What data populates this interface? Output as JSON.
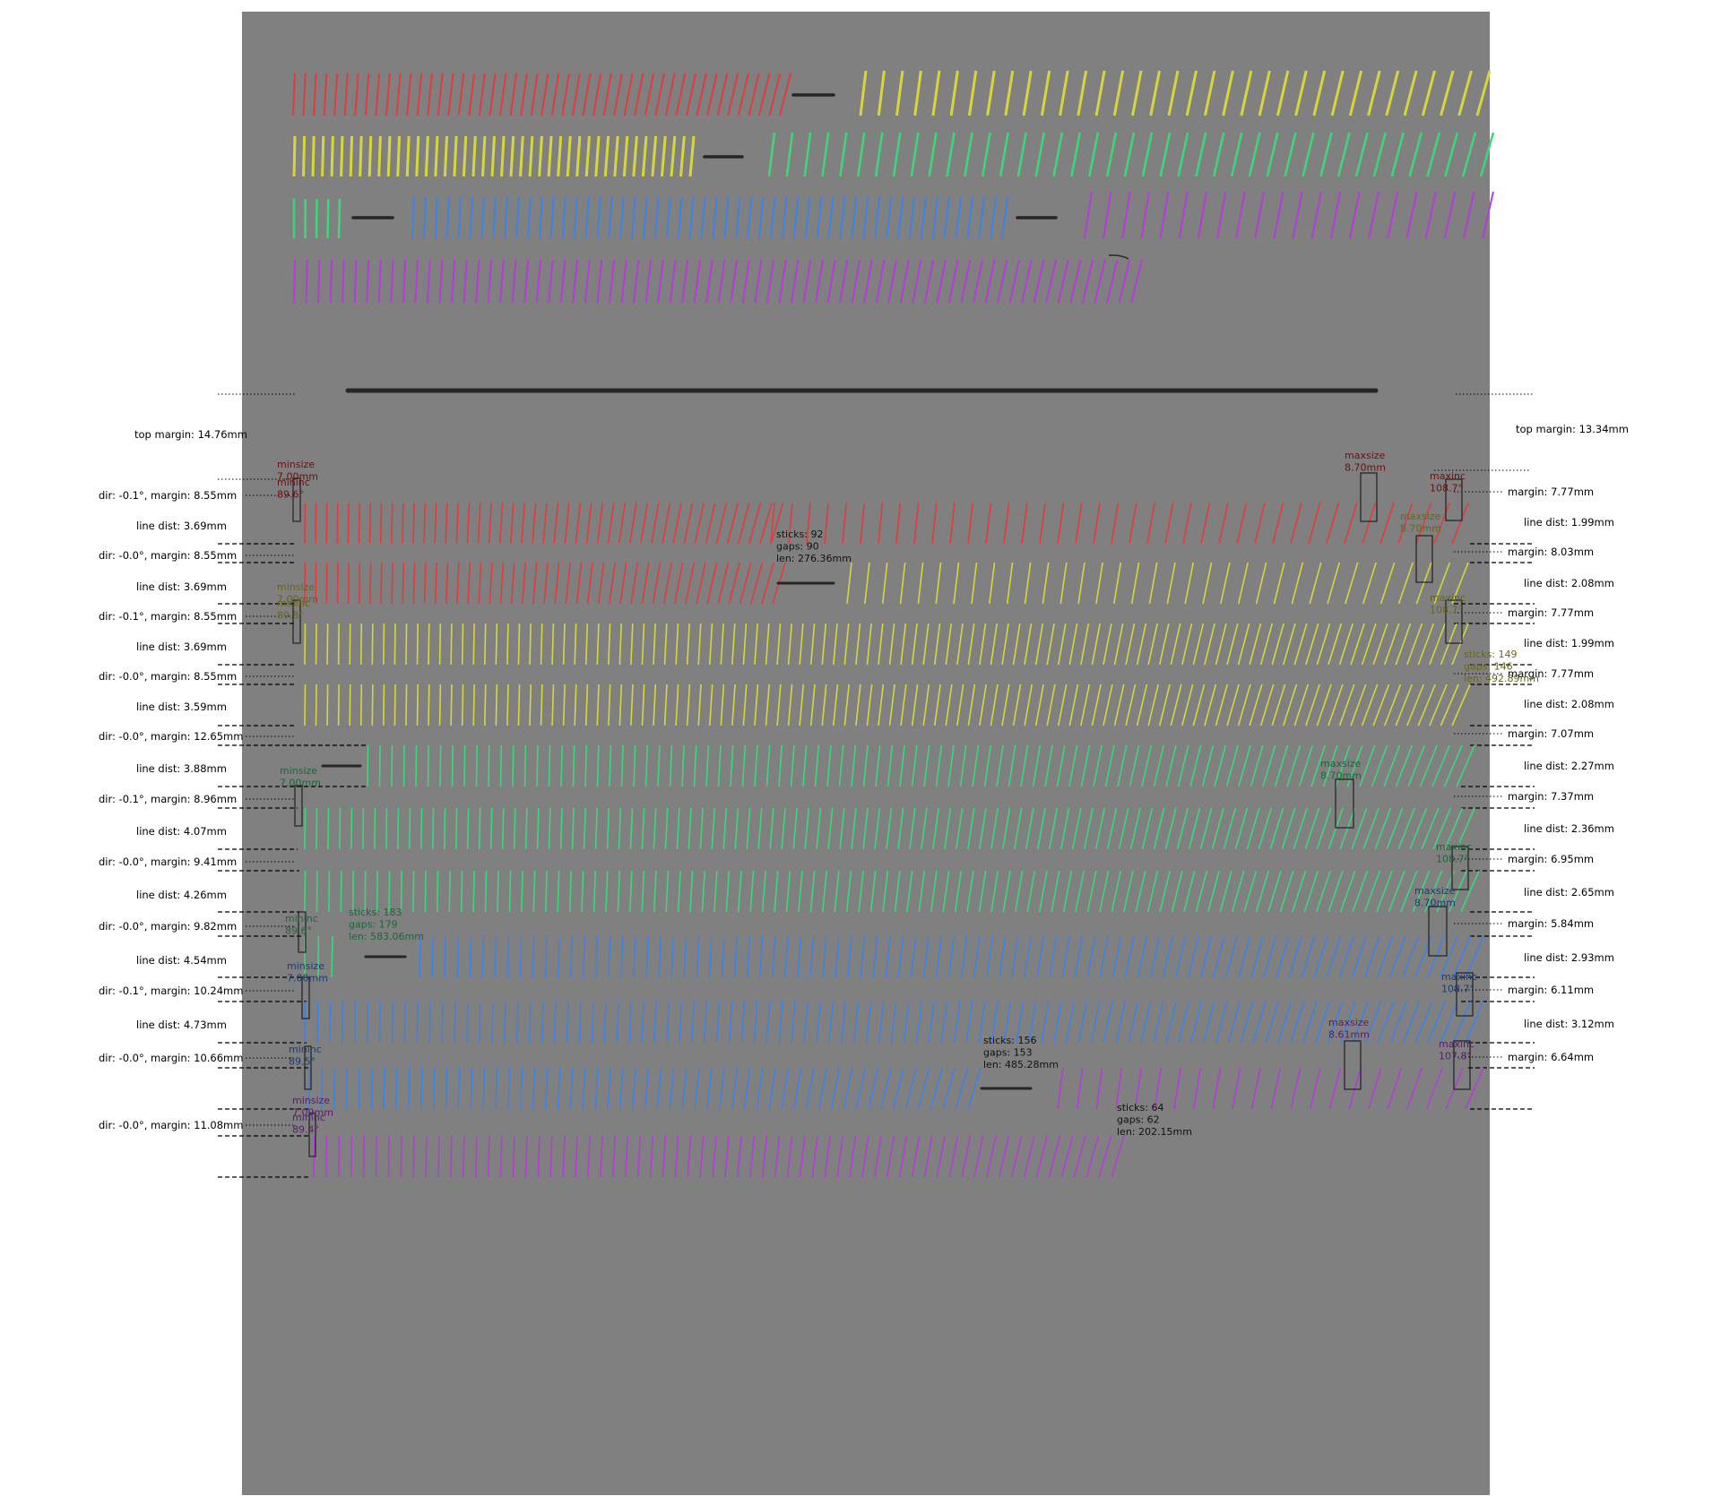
{
  "margins": {
    "top_left": "top margin: 14.76mm",
    "top_right": "top margin: 13.34mm"
  },
  "colors": {
    "background": "#ffffff",
    "sheet": "#808080",
    "ink": "#262626",
    "red": "#e23b3b",
    "yellow": "#d6d63c",
    "green": "#3ed67a",
    "blue": "#3c82e6",
    "purple": "#b53cd8"
  },
  "left_labels": [
    "dir: -0.1°, margin: 8.55mm",
    "line dist: 3.69mm",
    "dir: -0.0°, margin: 8.55mm",
    "line dist: 3.69mm",
    "dir: -0.1°, margin: 8.55mm",
    "line dist: 3.69mm",
    "dir: -0.0°, margin: 8.55mm",
    "line dist: 3.59mm",
    "dir: -0.0°, margin: 12.65mm",
    "line dist: 3.88mm",
    "dir: -0.1°, margin: 8.96mm",
    "line dist: 4.07mm",
    "dir: -0.0°, margin: 9.41mm",
    "line dist: 4.26mm",
    "dir: -0.0°, margin: 9.82mm",
    "line dist: 4.54mm",
    "dir: -0.1°, margin: 10.24mm",
    "line dist: 4.73mm",
    "dir: -0.0°, margin: 10.66mm",
    "dir: -0.0°, margin: 11.08mm"
  ],
  "right_labels": [
    "margin: 7.77mm",
    "line dist: 1.99mm",
    "margin: 8.03mm",
    "line dist: 2.08mm",
    "margin: 7.77mm",
    "line dist: 1.99mm",
    "margin: 7.77mm",
    "line dist: 2.08mm",
    "margin: 7.07mm",
    "line dist: 2.27mm",
    "margin: 7.37mm",
    "line dist: 2.36mm",
    "margin: 6.95mm",
    "line dist: 2.65mm",
    "margin: 5.84mm",
    "line dist: 2.93mm",
    "margin: 6.11mm",
    "line dist: 3.12mm",
    "margin: 6.64mm"
  ],
  "annotations": [
    {
      "color": "red",
      "lines": [
        "minsize",
        "7.00mm"
      ]
    },
    {
      "color": "red",
      "lines": [
        "mininc",
        "89.6°"
      ]
    },
    {
      "color": "red",
      "lines": [
        "maxsize",
        "8.70mm"
      ]
    },
    {
      "color": "red",
      "lines": [
        "maxinc",
        "108.7°"
      ]
    },
    {
      "color": "ink",
      "lines": [
        "sticks: 92",
        "gaps: 90",
        "len: 276.36mm"
      ]
    },
    {
      "color": "yellow",
      "lines": [
        "maxsize",
        "8.70mm"
      ]
    },
    {
      "color": "yellow",
      "lines": [
        "minsize",
        "7.00mm"
      ]
    },
    {
      "color": "yellow",
      "lines": [
        "mininc",
        "89.8°"
      ]
    },
    {
      "color": "yellow",
      "lines": [
        "maxinc",
        "108.7°"
      ]
    },
    {
      "color": "yellow",
      "lines": [
        "sticks: 149",
        "gaps: 146",
        "len: 492.89mm"
      ]
    },
    {
      "color": "green",
      "lines": [
        "minsize",
        "7.00mm"
      ]
    },
    {
      "color": "green",
      "lines": [
        "maxsize",
        "8.70mm"
      ]
    },
    {
      "color": "green",
      "lines": [
        "maxinc",
        "108.7°"
      ]
    },
    {
      "color": "green",
      "lines": [
        "mininc",
        "89.6°"
      ]
    },
    {
      "color": "green",
      "lines": [
        "sticks: 183",
        "gaps: 179",
        "len: 583.06mm"
      ]
    },
    {
      "color": "blue",
      "lines": [
        "maxsize",
        "8.70mm"
      ]
    },
    {
      "color": "blue",
      "lines": [
        "minsize",
        "7.00mm"
      ]
    },
    {
      "color": "blue",
      "lines": [
        "maxinc",
        "108.7°"
      ]
    },
    {
      "color": "blue",
      "lines": [
        "mininc",
        "89.5°"
      ]
    },
    {
      "color": "ink",
      "lines": [
        "sticks: 156",
        "gaps: 153",
        "len: 485.28mm"
      ]
    },
    {
      "color": "purple",
      "lines": [
        "maxsize",
        "8.61mm"
      ]
    },
    {
      "color": "purple",
      "lines": [
        "maxinc",
        "107.8°"
      ]
    },
    {
      "color": "purple",
      "lines": [
        "minsize",
        "7.09mm"
      ]
    },
    {
      "color": "purple",
      "lines": [
        "mininc",
        "89.4°"
      ]
    },
    {
      "color": "ink",
      "lines": [
        "sticks: 64",
        "gaps: 62",
        "len: 202.15mm"
      ]
    }
  ]
}
